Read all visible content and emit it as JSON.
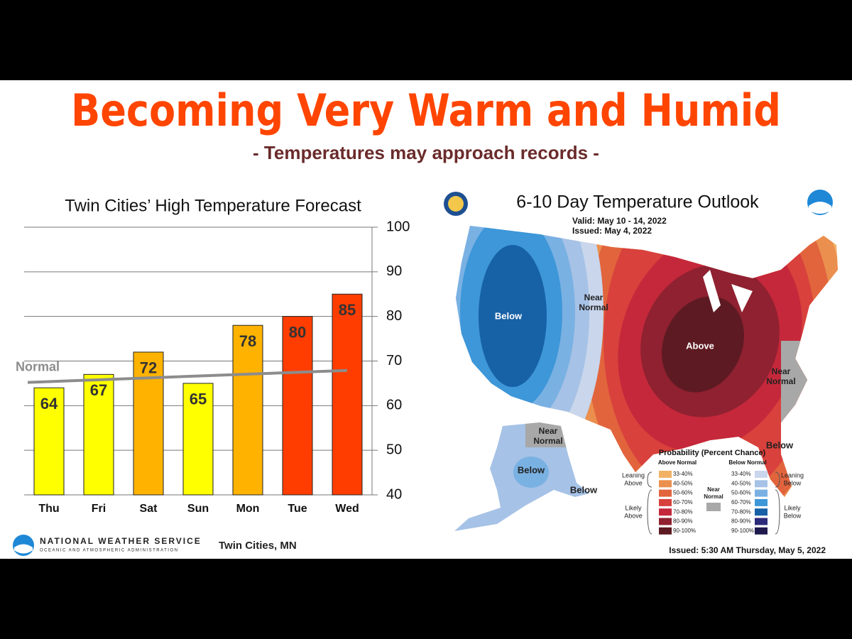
{
  "header": {
    "title": "Becoming Very Warm and Humid",
    "subtitle": "- Temperatures may approach records -"
  },
  "chart_data": {
    "type": "bar",
    "title": "Twin Cities’ High Temperature Forecast",
    "categories": [
      "Thu",
      "Fri",
      "Sat",
      "Sun",
      "Mon",
      "Tue",
      "Wed"
    ],
    "values": [
      64,
      67,
      72,
      65,
      78,
      80,
      85
    ],
    "colors": [
      "#ffff00",
      "#ffff00",
      "#ffb300",
      "#ffff00",
      "#ffb300",
      "#ff3d00",
      "#ff3d00"
    ],
    "ylim": [
      40,
      100
    ],
    "yticks": [
      40,
      50,
      60,
      70,
      80,
      90,
      100
    ],
    "grid": true,
    "y_axis_side": "right",
    "normal": {
      "label": "Normal",
      "start": 65.2,
      "end": 67.9,
      "color": "#8c8c8c"
    }
  },
  "map": {
    "title": "6-10 Day Temperature Outlook",
    "valid": "Valid:  May 10 - 14, 2022",
    "issued": "Issued:  May 4, 2022",
    "regions": [
      [
        "Below"
      ],
      [
        "Near",
        "Normal"
      ],
      [
        "Above"
      ],
      [
        "Near",
        "Normal"
      ],
      [
        "Below"
      ],
      [
        "Near",
        "Normal"
      ],
      [
        "Below"
      ],
      [
        "Below"
      ]
    ],
    "legend": {
      "title": "Probability (Percent Chance)",
      "above_header": "Above Normal",
      "below_header": "Below Normal",
      "above": [
        {
          "range": "33-40%",
          "color": "#f2b266"
        },
        {
          "range": "40-50%",
          "color": "#eb8f4e"
        },
        {
          "range": "50-60%",
          "color": "#e2643d"
        },
        {
          "range": "60-70%",
          "color": "#d8413c"
        },
        {
          "range": "70-80%",
          "color": "#c5283b"
        },
        {
          "range": "80-90%",
          "color": "#8f2130"
        },
        {
          "range": "90-100%",
          "color": "#5e1a22"
        }
      ],
      "below": [
        {
          "range": "33-40%",
          "color": "#c9d6ec"
        },
        {
          "range": "40-50%",
          "color": "#a6c2e6"
        },
        {
          "range": "50-60%",
          "color": "#7ab1e3"
        },
        {
          "range": "60-70%",
          "color": "#3d97d8"
        },
        {
          "range": "70-80%",
          "color": "#1761a6"
        },
        {
          "range": "80-90%",
          "color": "#2c2a7a"
        },
        {
          "range": "90-100%",
          "color": "#1e1a4e"
        }
      ],
      "leaning_above": [
        "Leaning",
        "Above"
      ],
      "likely_above": [
        "Likely",
        "Above"
      ],
      "near_normal": [
        "Near",
        "Normal"
      ],
      "leaning_below": [
        "Leaning",
        "Below"
      ],
      "likely_below": [
        "Likely",
        "Below"
      ]
    }
  },
  "footer": {
    "agency": "NATIONAL WEATHER SERVICE",
    "agency_sub": "OCEANIC AND ATMOSPHERIC ADMINISTRATION",
    "office": "Twin Cities, MN",
    "issued": "Issued: 5:30 AM Thursday, May 5, 2022"
  }
}
